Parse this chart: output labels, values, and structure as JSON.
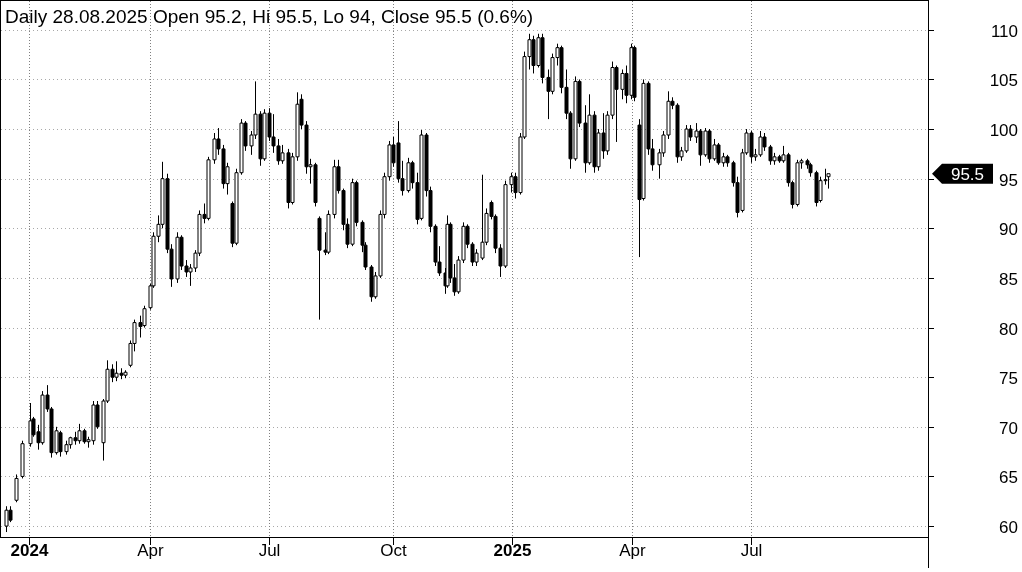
{
  "chart_data": {
    "type": "candlestick",
    "title": "Daily 28.08.2025 Open 95.2, Hi 95.5, Lo 94, Close 95.5 (0.6%)",
    "color": "#000000",
    "grid": true,
    "xlim": [
      "2023-12-11",
      "2025-11-12"
    ],
    "xticks": [
      {
        "value": "2024-01-01",
        "label": "2024"
      },
      {
        "value": "2024-04-02",
        "label": "Apr"
      },
      {
        "value": "2024-07-01",
        "label": "Jul"
      },
      {
        "value": "2024-10-03",
        "label": "Oct"
      },
      {
        "value": "2025-01-01",
        "label": "2025"
      },
      {
        "value": "2025-04-02",
        "label": "Apr"
      },
      {
        "value": "2025-07-01",
        "label": "Jul"
      }
    ],
    "ylim": [
      58.9,
      112.9
    ],
    "yticks": [
      60,
      65,
      70,
      75,
      80,
      85,
      90,
      95,
      100,
      105,
      110
    ],
    "annotations": [
      "95.5"
    ],
    "x": [
      "2023-12-15",
      "2023-12-18",
      "2023-12-22",
      "2023-12-27",
      "2024-01-02",
      "2024-01-04",
      "2024-01-08",
      "2024-01-11",
      "2024-01-15",
      "2024-01-18",
      "2024-01-22",
      "2024-01-25",
      "2024-01-29",
      "2024-02-01",
      "2024-02-05",
      "2024-02-08",
      "2024-02-12",
      "2024-02-15",
      "2024-02-19",
      "2024-02-22",
      "2024-02-26",
      "2024-02-29",
      "2024-03-04",
      "2024-03-07",
      "2024-03-11",
      "2024-03-14",
      "2024-03-18",
      "2024-03-21",
      "2024-03-25",
      "2024-03-28",
      "2024-04-02",
      "2024-04-04",
      "2024-04-08",
      "2024-04-11",
      "2024-04-15",
      "2024-04-18",
      "2024-04-22",
      "2024-04-25",
      "2024-04-29",
      "2024-05-02",
      "2024-05-06",
      "2024-05-09",
      "2024-05-13",
      "2024-05-16",
      "2024-05-20",
      "2024-05-23",
      "2024-05-27",
      "2024-05-30",
      "2024-06-03",
      "2024-06-06",
      "2024-06-10",
      "2024-06-13",
      "2024-06-17",
      "2024-06-20",
      "2024-06-24",
      "2024-06-27",
      "2024-07-01",
      "2024-07-04",
      "2024-07-08",
      "2024-07-11",
      "2024-07-15",
      "2024-07-18",
      "2024-07-22",
      "2024-07-25",
      "2024-07-29",
      "2024-08-01",
      "2024-08-05",
      "2024-08-08",
      "2024-08-12",
      "2024-08-15",
      "2024-08-19",
      "2024-08-22",
      "2024-08-26",
      "2024-08-29",
      "2024-09-02",
      "2024-09-05",
      "2024-09-09",
      "2024-09-12",
      "2024-09-16",
      "2024-09-19",
      "2024-09-23",
      "2024-09-26",
      "2024-09-30",
      "2024-10-03",
      "2024-10-07",
      "2024-10-10",
      "2024-10-14",
      "2024-10-17",
      "2024-10-21",
      "2024-10-24",
      "2024-10-28",
      "2024-10-31",
      "2024-11-04",
      "2024-11-07",
      "2024-11-11",
      "2024-11-13",
      "2024-11-15",
      "2024-11-18",
      "2024-11-21",
      "2024-11-25",
      "2024-11-28",
      "2024-12-02",
      "2024-12-05",
      "2024-12-09",
      "2024-12-12",
      "2024-12-16",
      "2024-12-19",
      "2024-12-23",
      "2024-12-27",
      "2024-12-31",
      "2025-01-03",
      "2025-01-07",
      "2025-01-10",
      "2025-01-14",
      "2025-01-17",
      "2025-01-21",
      "2025-01-24",
      "2025-01-28",
      "2025-01-31",
      "2025-02-04",
      "2025-02-07",
      "2025-02-11",
      "2025-02-14",
      "2025-02-18",
      "2025-02-21",
      "2025-02-25",
      "2025-02-28",
      "2025-03-04",
      "2025-03-07",
      "2025-03-11",
      "2025-03-14",
      "2025-03-18",
      "2025-03-21",
      "2025-03-25",
      "2025-03-28",
      "2025-04-01",
      "2025-04-03",
      "2025-04-07",
      "2025-04-10",
      "2025-04-14",
      "2025-04-17",
      "2025-04-22",
      "2025-04-25",
      "2025-04-29",
      "2025-05-02",
      "2025-05-06",
      "2025-05-09",
      "2025-05-13",
      "2025-05-16",
      "2025-05-20",
      "2025-05-23",
      "2025-05-27",
      "2025-05-30",
      "2025-06-03",
      "2025-06-06",
      "2025-06-10",
      "2025-06-13",
      "2025-06-17",
      "2025-06-20",
      "2025-06-24",
      "2025-06-27",
      "2025-07-01",
      "2025-07-04",
      "2025-07-08",
      "2025-07-11",
      "2025-07-15",
      "2025-07-18",
      "2025-07-22",
      "2025-07-25",
      "2025-07-29",
      "2025-08-01",
      "2025-08-05",
      "2025-08-08",
      "2025-08-12",
      "2025-08-15",
      "2025-08-19",
      "2025-08-22",
      "2025-08-26",
      "2025-08-28"
    ],
    "ohlc": [
      [
        60.0,
        62.0,
        59.4,
        61.6
      ],
      [
        61.6,
        62.0,
        60.4,
        60.6
      ],
      [
        62.6,
        65.2,
        62.4,
        64.8
      ],
      [
        65.0,
        68.6,
        64.8,
        68.3
      ],
      [
        68.3,
        72.4,
        68.0,
        70.6
      ],
      [
        70.8,
        71.0,
        69.0,
        69.2
      ],
      [
        69.5,
        70.2,
        67.7,
        68.4
      ],
      [
        68.4,
        73.6,
        68.2,
        73.2
      ],
      [
        73.2,
        74.2,
        71.5,
        71.8
      ],
      [
        71.8,
        72.0,
        66.9,
        67.4
      ],
      [
        67.4,
        70.0,
        67.2,
        69.6
      ],
      [
        69.4,
        69.6,
        67.0,
        67.5
      ],
      [
        67.5,
        68.6,
        67.2,
        68.2
      ],
      [
        68.2,
        69.0,
        67.8,
        68.9
      ],
      [
        68.9,
        69.5,
        68.2,
        68.6
      ],
      [
        68.6,
        70.3,
        68.3,
        69.6
      ],
      [
        69.6,
        69.8,
        68.3,
        68.5
      ],
      [
        68.5,
        69.0,
        67.9,
        68.7
      ],
      [
        68.6,
        72.6,
        68.2,
        72.2
      ],
      [
        72.2,
        72.6,
        69.8,
        70.0
      ],
      [
        68.4,
        72.8,
        66.6,
        72.6
      ],
      [
        72.6,
        76.7,
        72.4,
        75.8
      ],
      [
        75.8,
        76.3,
        74.5,
        75.0
      ],
      [
        75.0,
        76.6,
        74.6,
        75.4
      ],
      [
        75.4,
        75.9,
        74.8,
        75.2
      ],
      [
        75.2,
        75.7,
        74.9,
        75.5
      ],
      [
        76.2,
        78.7,
        76.0,
        78.4
      ],
      [
        78.4,
        80.8,
        77.6,
        80.5
      ],
      [
        80.5,
        81.2,
        79.0,
        80.1
      ],
      [
        80.2,
        82.2,
        80.0,
        81.9
      ],
      [
        82.0,
        84.4,
        81.8,
        84.2
      ],
      [
        84.2,
        89.6,
        84.0,
        89.2
      ],
      [
        89.2,
        91.3,
        88.6,
        90.4
      ],
      [
        90.4,
        96.7,
        90.0,
        95.0
      ],
      [
        95.0,
        95.5,
        87.5,
        87.9
      ],
      [
        87.9,
        88.4,
        84.1,
        84.9
      ],
      [
        84.9,
        89.6,
        84.5,
        89.1
      ],
      [
        89.1,
        89.3,
        85.8,
        86.2
      ],
      [
        86.2,
        86.8,
        85.1,
        85.6
      ],
      [
        85.6,
        86.4,
        84.2,
        86.0
      ],
      [
        86.0,
        87.8,
        85.6,
        87.5
      ],
      [
        87.5,
        91.8,
        87.2,
        91.4
      ],
      [
        91.4,
        92.5,
        90.5,
        91.0
      ],
      [
        91.0,
        97.2,
        90.8,
        96.9
      ],
      [
        96.9,
        99.6,
        96.5,
        99.0
      ],
      [
        99.0,
        100.1,
        97.4,
        98.0
      ],
      [
        98.0,
        98.4,
        94.0,
        94.5
      ],
      [
        94.5,
        96.6,
        93.4,
        96.2
      ],
      [
        92.5,
        92.7,
        88.1,
        88.5
      ],
      [
        88.5,
        96.0,
        88.3,
        95.6
      ],
      [
        95.6,
        101.0,
        95.4,
        100.6
      ],
      [
        100.6,
        100.8,
        97.8,
        98.3
      ],
      [
        98.3,
        99.8,
        97.4,
        99.4
      ],
      [
        99.4,
        104.8,
        99.0,
        101.5
      ],
      [
        101.5,
        101.8,
        96.3,
        97.0
      ],
      [
        97.0,
        102.0,
        96.8,
        101.6
      ],
      [
        101.6,
        102.1,
        98.8,
        99.2
      ],
      [
        99.2,
        101.5,
        97.6,
        98.3
      ],
      [
        98.3,
        99.0,
        96.4,
        96.8
      ],
      [
        96.8,
        98.4,
        96.5,
        97.6
      ],
      [
        97.6,
        98.0,
        92.0,
        92.6
      ],
      [
        92.6,
        97.6,
        92.4,
        97.2
      ],
      [
        97.2,
        103.7,
        96.8,
        102.5
      ],
      [
        103.0,
        103.5,
        100.0,
        100.4
      ],
      [
        100.4,
        100.8,
        95.5,
        96.2
      ],
      [
        96.2,
        97.0,
        94.5,
        96.4
      ],
      [
        96.4,
        96.6,
        92.2,
        92.6
      ],
      [
        91.0,
        91.2,
        80.8,
        87.8
      ],
      [
        87.8,
        89.6,
        87.3,
        87.6
      ],
      [
        87.6,
        91.8,
        87.4,
        91.4
      ],
      [
        91.4,
        96.9,
        91.0,
        96.2
      ],
      [
        96.2,
        96.9,
        93.5,
        93.8
      ],
      [
        93.8,
        94.0,
        89.8,
        90.4
      ],
      [
        90.4,
        91.0,
        88.0,
        88.4
      ],
      [
        88.4,
        95.0,
        88.2,
        94.6
      ],
      [
        94.6,
        94.8,
        90.2,
        90.6
      ],
      [
        90.6,
        90.8,
        87.6,
        88.3
      ],
      [
        88.3,
        88.6,
        85.8,
        86.1
      ],
      [
        86.1,
        86.3,
        82.6,
        83.1
      ],
      [
        83.1,
        85.6,
        82.9,
        85.2
      ],
      [
        85.2,
        91.8,
        85.0,
        91.4
      ],
      [
        91.4,
        95.6,
        91.0,
        95.2
      ],
      [
        95.2,
        98.8,
        94.8,
        98.4
      ],
      [
        98.4,
        99.2,
        96.2,
        96.6
      ],
      [
        98.6,
        100.8,
        94.6,
        95.0
      ],
      [
        95.0,
        96.8,
        93.3,
        93.8
      ],
      [
        93.8,
        97.1,
        93.6,
        96.6
      ],
      [
        96.6,
        96.8,
        94.0,
        94.6
      ],
      [
        94.6,
        95.6,
        90.4,
        90.9
      ],
      [
        91.0,
        99.9,
        90.8,
        99.4
      ],
      [
        99.4,
        99.6,
        93.2,
        93.8
      ],
      [
        93.8,
        94.2,
        89.6,
        90.2
      ],
      [
        90.2,
        90.4,
        86.2,
        86.6
      ],
      [
        86.6,
        88.2,
        85.2,
        85.5
      ],
      [
        85.5,
        86.0,
        83.4,
        84.2
      ],
      [
        84.2,
        91.3,
        84.0,
        90.4
      ],
      [
        90.4,
        90.6,
        84.5,
        85.0
      ],
      [
        85.0,
        86.4,
        83.2,
        83.6
      ],
      [
        83.6,
        87.2,
        83.4,
        86.8
      ],
      [
        86.8,
        90.6,
        86.5,
        90.2
      ],
      [
        90.2,
        90.4,
        88.0,
        88.4
      ],
      [
        88.4,
        88.6,
        86.2,
        86.6
      ],
      [
        86.6,
        87.9,
        86.2,
        87.5
      ],
      [
        87.0,
        95.4,
        86.8,
        88.6
      ],
      [
        88.6,
        92.0,
        88.3,
        91.5
      ],
      [
        92.6,
        92.8,
        90.9,
        91.2
      ],
      [
        91.2,
        91.4,
        87.5,
        88.0
      ],
      [
        88.0,
        88.4,
        85.1,
        86.2
      ],
      [
        86.2,
        94.8,
        86.0,
        94.4
      ],
      [
        94.4,
        95.6,
        93.6,
        95.2
      ],
      [
        95.2,
        95.6,
        93.0,
        93.6
      ],
      [
        93.6,
        99.6,
        93.4,
        99.2
      ],
      [
        99.2,
        107.8,
        99.0,
        107.3
      ],
      [
        107.3,
        109.6,
        106.0,
        109.0
      ],
      [
        109.0,
        109.4,
        105.6,
        106.4
      ],
      [
        106.4,
        109.6,
        106.2,
        109.2
      ],
      [
        109.2,
        109.6,
        104.6,
        105.2
      ],
      [
        105.2,
        106.0,
        101.0,
        103.8
      ],
      [
        103.8,
        107.6,
        103.5,
        107.2
      ],
      [
        107.2,
        108.6,
        106.4,
        108.2
      ],
      [
        108.2,
        108.4,
        103.6,
        104.2
      ],
      [
        104.2,
        106.0,
        101.0,
        101.6
      ],
      [
        101.6,
        101.8,
        96.0,
        97.0
      ],
      [
        97.0,
        105.3,
        96.8,
        104.8
      ],
      [
        104.8,
        105.0,
        100.2,
        100.6
      ],
      [
        100.6,
        102.4,
        95.6,
        96.6
      ],
      [
        96.6,
        103.5,
        96.4,
        101.4
      ],
      [
        101.4,
        101.8,
        95.6,
        96.2
      ],
      [
        96.2,
        100.0,
        95.8,
        99.6
      ],
      [
        99.6,
        101.6,
        97.0,
        97.8
      ],
      [
        97.8,
        101.8,
        97.4,
        101.4
      ],
      [
        101.4,
        106.8,
        101.0,
        106.2
      ],
      [
        106.2,
        106.4,
        98.7,
        104.0
      ],
      [
        104.0,
        106.0,
        103.0,
        105.6
      ],
      [
        105.6,
        106.4,
        102.6,
        103.4
      ],
      [
        103.4,
        108.6,
        103.0,
        108.2
      ],
      [
        108.2,
        108.4,
        102.8,
        103.2
      ],
      [
        100.4,
        101.0,
        87.1,
        92.9
      ],
      [
        93.0,
        105.0,
        92.8,
        104.6
      ],
      [
        104.6,
        104.8,
        97.4,
        98.0
      ],
      [
        98.0,
        99.0,
        95.8,
        96.4
      ],
      [
        96.4,
        98.0,
        95.0,
        97.6
      ],
      [
        97.6,
        99.8,
        97.2,
        99.4
      ],
      [
        99.4,
        103.8,
        99.0,
        102.8
      ],
      [
        102.8,
        103.2,
        102.0,
        102.4
      ],
      [
        102.4,
        102.6,
        96.6,
        97.2
      ],
      [
        97.2,
        98.2,
        96.8,
        97.8
      ],
      [
        97.8,
        100.4,
        97.6,
        100.0
      ],
      [
        100.0,
        100.4,
        98.8,
        99.2
      ],
      [
        99.2,
        100.6,
        98.6,
        99.8
      ],
      [
        99.8,
        100.0,
        96.3,
        97.4
      ],
      [
        97.4,
        100.1,
        97.2,
        99.8
      ],
      [
        99.8,
        100.0,
        96.6,
        97.0
      ],
      [
        97.0,
        99.0,
        96.8,
        98.4
      ],
      [
        98.4,
        98.6,
        96.4,
        96.6
      ],
      [
        96.6,
        97.6,
        96.2,
        97.2
      ],
      [
        97.2,
        97.4,
        96.2,
        96.6
      ],
      [
        96.6,
        96.8,
        94.2,
        94.6
      ],
      [
        94.6,
        95.2,
        91.1,
        91.6
      ],
      [
        91.8,
        98.0,
        91.6,
        97.6
      ],
      [
        97.6,
        100.0,
        97.4,
        99.6
      ],
      [
        99.6,
        99.8,
        96.6,
        97.2
      ],
      [
        97.2,
        98.0,
        96.8,
        97.4
      ],
      [
        97.4,
        99.8,
        97.2,
        99.2
      ],
      [
        99.2,
        99.6,
        97.8,
        98.2
      ],
      [
        98.2,
        98.4,
        96.4,
        96.8
      ],
      [
        96.8,
        97.6,
        96.4,
        97.2
      ],
      [
        97.2,
        97.4,
        96.6,
        96.8
      ],
      [
        96.8,
        98.3,
        96.6,
        97.4
      ],
      [
        97.4,
        97.6,
        94.2,
        94.6
      ],
      [
        94.6,
        94.8,
        92.0,
        92.4
      ],
      [
        92.4,
        96.9,
        92.2,
        96.6
      ],
      [
        96.6,
        97.0,
        96.0,
        96.8
      ],
      [
        96.8,
        97.0,
        96.0,
        96.4
      ],
      [
        96.4,
        96.6,
        95.2,
        95.6
      ],
      [
        95.6,
        95.8,
        92.2,
        92.6
      ],
      [
        92.8,
        95.2,
        92.6,
        94.8
      ],
      [
        94.8,
        96.0,
        94.4,
        94.9
      ],
      [
        95.2,
        95.5,
        94.0,
        95.5
      ]
    ]
  }
}
